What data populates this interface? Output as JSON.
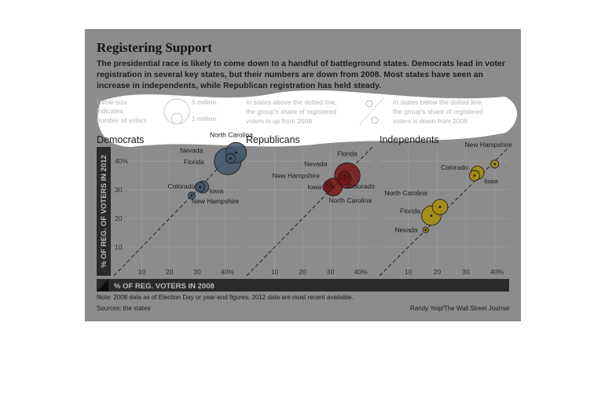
{
  "title": "Registering Support",
  "subtitle": "The presidential race is likely to come down to a handful of battleground states. Democrats lead in voter registration in several key states, but their numbers are down from 2008. Most states have seen an increase in independents, while Republican registration has held steady.",
  "legend": {
    "size_text_1": "Circle size",
    "size_text_2": "indicates",
    "size_text_3": "number of voters",
    "size_big": "5 million",
    "size_small": "1 million",
    "above_1": "In states above the dotted line,",
    "above_2": "the group's share of registered",
    "above_3": "voters is up from 2008",
    "below_1": "In states below the dotted line,",
    "below_2": "the group's share of registered",
    "below_3": "voters is down from 2008"
  },
  "ylabel": "% OF REG. OF VOTERS IN 2012",
  "xlabel": "% OF REG. VOTERS IN 2008",
  "note": "Note: 2008 data as of Election Day or year-end figures. 2012 data are most recent available.",
  "sources": "Sources: the states",
  "credit": "Randy Yeip/The Wall Street Journal",
  "colors": {
    "background": "#8c8c8c",
    "Democrats": "#41566a",
    "Republicans": "#7a1414",
    "Independents": "#a88e0c",
    "axis_bar": "#2a2a2a"
  },
  "chart_data": [
    {
      "type": "scatter",
      "title": "Democrats",
      "xlabel": "% OF REG. VOTERS IN 2008",
      "ylabel": "% OF REG. OF VOTERS IN 2012",
      "xlim": [
        0,
        45
      ],
      "ylim": [
        0,
        45
      ],
      "x_ticks": [
        "10",
        "20",
        "30",
        "40%"
      ],
      "y_ticks": [
        "10",
        "20",
        "30",
        "40%"
      ],
      "points": [
        {
          "label": "North Carolina",
          "x": 44,
          "y": 43,
          "voters_millions": 2.7
        },
        {
          "label": "Nevada",
          "x": 42,
          "y": 41,
          "voters_millions": 0.6
        },
        {
          "label": "Florida",
          "x": 41,
          "y": 40,
          "voters_millions": 4.6
        },
        {
          "label": "Colorado",
          "x": 32,
          "y": 31,
          "voters_millions": 0.9
        },
        {
          "label": "Iowa",
          "x": 31,
          "y": 31,
          "voters_millions": 0.6
        },
        {
          "label": "New Hampshire",
          "x": 28,
          "y": 28,
          "voters_millions": 0.3
        }
      ]
    },
    {
      "type": "scatter",
      "title": "Republicans",
      "xlim": [
        0,
        45
      ],
      "ylim": [
        0,
        45
      ],
      "x_ticks": [
        "10",
        "20",
        "30",
        "40%"
      ],
      "points": [
        {
          "label": "Florida",
          "x": 36,
          "y": 35,
          "voters_millions": 4.1
        },
        {
          "label": "Nevada",
          "x": 35,
          "y": 35,
          "voters_millions": 0.5
        },
        {
          "label": "New Hampshire",
          "x": 29,
          "y": 32,
          "voters_millions": 0.3
        },
        {
          "label": "Iowa",
          "x": 29,
          "y": 31,
          "voters_millions": 0.6
        },
        {
          "label": "Colorado",
          "x": 35,
          "y": 34,
          "voters_millions": 1.1
        },
        {
          "label": "North Carolina",
          "x": 31,
          "y": 31,
          "voters_millions": 2.0
        }
      ]
    },
    {
      "type": "scatter",
      "title": "Independents",
      "xlim": [
        0,
        45
      ],
      "ylim": [
        0,
        45
      ],
      "x_ticks": [
        "10",
        "20",
        "30",
        "40%"
      ],
      "points": [
        {
          "label": "New Hampshire",
          "x": 40,
          "y": 39,
          "voters_millions": 0.4
        },
        {
          "label": "Colorado",
          "x": 34,
          "y": 36,
          "voters_millions": 1.1
        },
        {
          "label": "Iowa",
          "x": 33,
          "y": 35,
          "voters_millions": 0.7
        },
        {
          "label": "North Carolina",
          "x": 21,
          "y": 24,
          "voters_millions": 1.5
        },
        {
          "label": "Florida",
          "x": 18,
          "y": 21,
          "voters_millions": 2.4
        },
        {
          "label": "Nevada",
          "x": 16,
          "y": 16,
          "voters_millions": 0.2
        }
      ]
    }
  ]
}
